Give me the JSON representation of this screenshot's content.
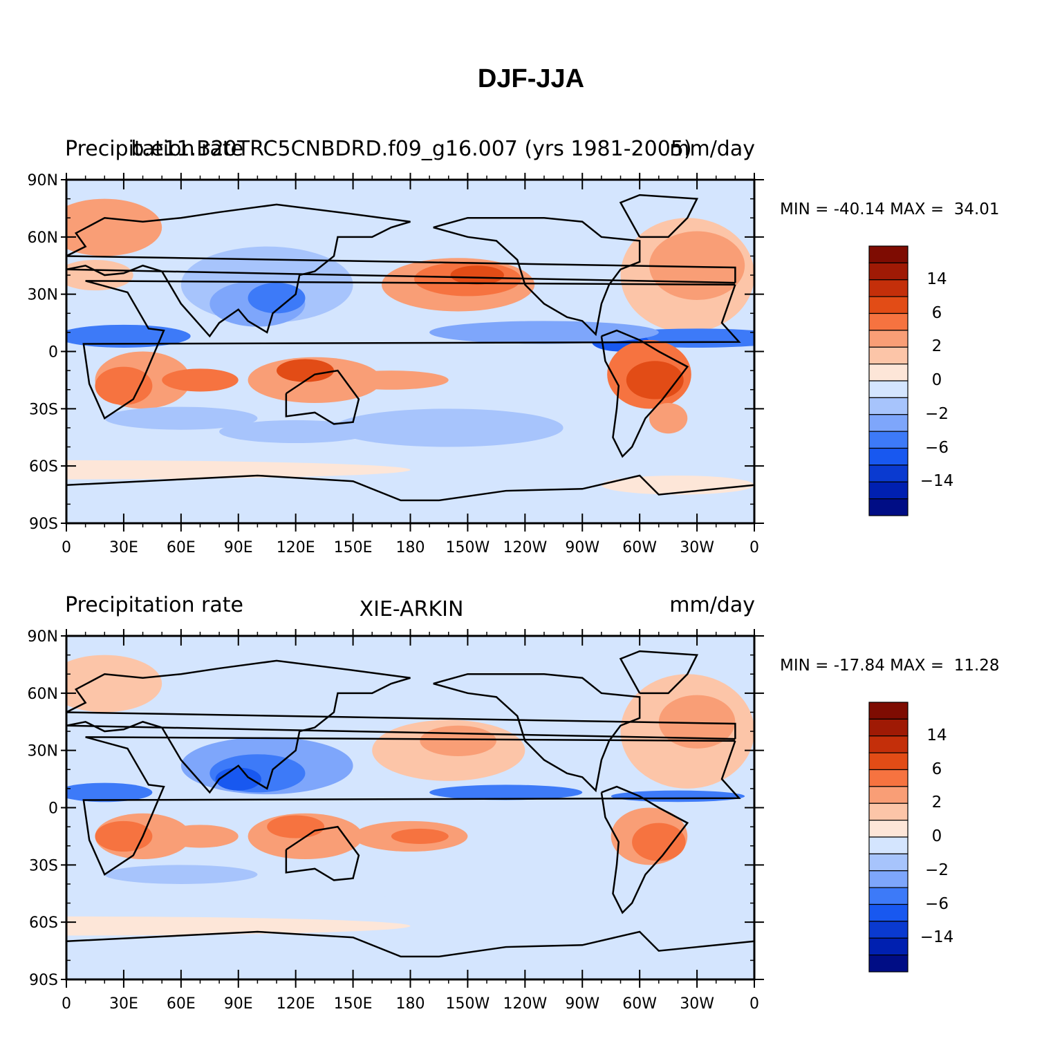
{
  "title": "DJF-JJA",
  "colors": {
    "levels": [
      "#000d85",
      "#0020b0",
      "#0a3ad0",
      "#1858f0",
      "#3d7af8",
      "#7ea6fb",
      "#a7c4fc",
      "#d4e5fe",
      "#fde6d8",
      "#fcc5a8",
      "#f99e76",
      "#f67340",
      "#e24c16",
      "#c42f0a",
      "#9f1a05",
      "#7e0c02"
    ],
    "coast": "#000000"
  },
  "colorbar": {
    "labels": [
      "14",
      "6",
      "2",
      "0",
      "-2",
      "-6",
      "-14"
    ]
  },
  "axes": {
    "lat_labels": [
      "90N",
      "60N",
      "30N",
      "0",
      "30S",
      "60S",
      "90S"
    ],
    "lon_labels": [
      "0",
      "30E",
      "60E",
      "90E",
      "120E",
      "150E",
      "180",
      "150W",
      "120W",
      "90W",
      "60W",
      "30W",
      "0"
    ]
  },
  "panels": [
    {
      "left_label": "Precipitation rate",
      "center_label": "b.e11.B20TRC5CNBDRD.f09_g16.007 (yrs 1981-2005)",
      "right_label": "mm/day",
      "minmax": "MIN = -40.14 MAX =  34.01"
    },
    {
      "left_label": "Precipitation rate",
      "center_label": "XIE-ARKIN",
      "right_label": "mm/day",
      "minmax": "MIN = -17.84 MAX =  11.28"
    }
  ]
}
